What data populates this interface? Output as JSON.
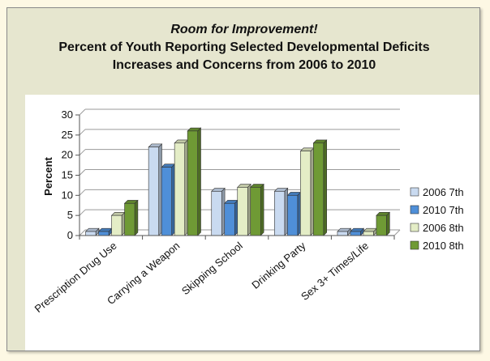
{
  "chart_data": {
    "type": "bar",
    "title": "Room for Improvement!",
    "subtitle": "Percent of Youth Reporting Selected Developmental Deficits",
    "subtitle2": "Increases and Concerns from 2006 to 2010",
    "xlabel": "",
    "ylabel": "Percent",
    "ylim": [
      0,
      30
    ],
    "yticks": [
      0,
      5,
      10,
      15,
      20,
      25,
      30
    ],
    "grid": true,
    "legend_position": "right",
    "categories": [
      "Prescription Drug Use",
      "Carrying a Weapon",
      "Skipping School",
      "Drinking Party",
      "Sex 3+ Times/Life"
    ],
    "series": [
      {
        "name": "2006 7th",
        "color": "#c9daf0",
        "values": [
          1,
          22,
          11,
          11,
          1
        ]
      },
      {
        "name": "2010 7th",
        "color": "#4f8fd8",
        "values": [
          1,
          17,
          8,
          10,
          1
        ]
      },
      {
        "name": "2006 8th",
        "color": "#e4edc6",
        "values": [
          5,
          23,
          12,
          21,
          1
        ]
      },
      {
        "name": "2010 8th",
        "color": "#6f9a35",
        "values": [
          8,
          26,
          12,
          23,
          5
        ]
      }
    ]
  }
}
